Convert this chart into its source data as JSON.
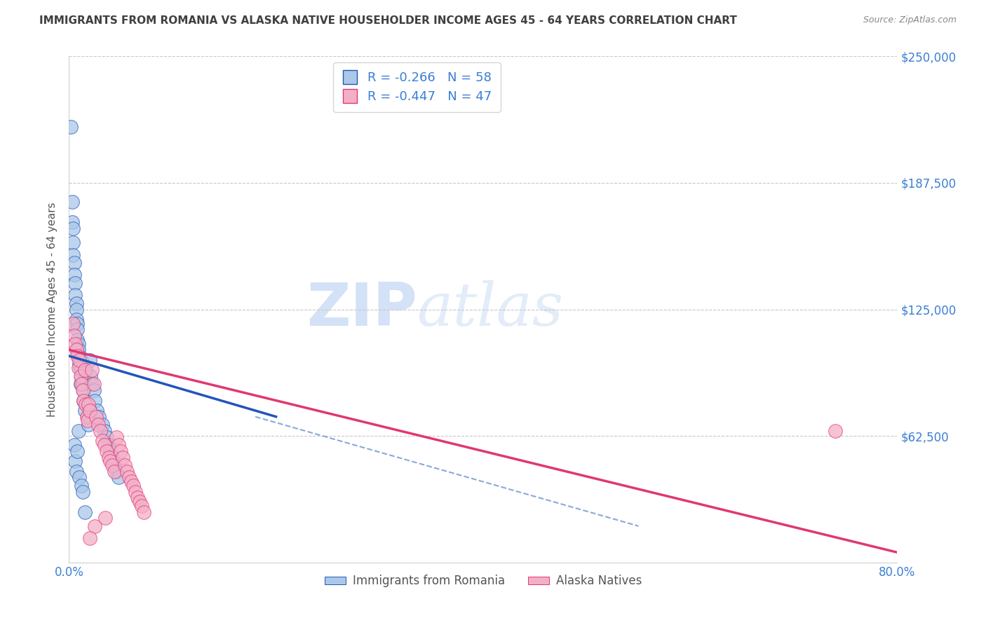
{
  "title": "IMMIGRANTS FROM ROMANIA VS ALASKA NATIVE HOUSEHOLDER INCOME AGES 45 - 64 YEARS CORRELATION CHART",
  "source": "Source: ZipAtlas.com",
  "ylabel": "Householder Income Ages 45 - 64 years",
  "xlabel": "",
  "legend_label1": "Immigrants from Romania",
  "legend_label2": "Alaska Natives",
  "r1": -0.266,
  "n1": 58,
  "r2": -0.447,
  "n2": 47,
  "color1": "#aac8e8",
  "color2": "#f4afc8",
  "line_color1": "#2255bb",
  "line_color2": "#e03870",
  "title_color": "#404040",
  "axis_color": "#3a7fd5",
  "watermark_color": "#ccddf5",
  "xlim": [
    0,
    0.8
  ],
  "ylim": [
    0,
    250000
  ],
  "yticks": [
    0,
    62500,
    125000,
    187500,
    250000
  ],
  "ytick_labels": [
    "",
    "$62,500",
    "$125,000",
    "$187,500",
    "$250,000"
  ],
  "xticks": [
    0.0,
    0.1,
    0.2,
    0.3,
    0.4,
    0.5,
    0.6,
    0.7,
    0.8
  ],
  "xtick_labels": [
    "0.0%",
    "",
    "",
    "",
    "",
    "",
    "",
    "",
    "80.0%"
  ],
  "blue_line_x": [
    0.0,
    0.2
  ],
  "blue_line_y": [
    102000,
    72000
  ],
  "pink_line_x": [
    0.0,
    0.8
  ],
  "pink_line_y": [
    105000,
    5000
  ],
  "dash_line_x": [
    0.18,
    0.55
  ],
  "dash_line_y": [
    72000,
    18000
  ],
  "scatter1_x": [
    0.002,
    0.003,
    0.003,
    0.004,
    0.004,
    0.004,
    0.005,
    0.005,
    0.005,
    0.006,
    0.006,
    0.006,
    0.007,
    0.007,
    0.007,
    0.007,
    0.008,
    0.008,
    0.008,
    0.008,
    0.009,
    0.009,
    0.009,
    0.01,
    0.01,
    0.01,
    0.011,
    0.011,
    0.012,
    0.012,
    0.012,
    0.013,
    0.013,
    0.014,
    0.014,
    0.015,
    0.016,
    0.017,
    0.018,
    0.019,
    0.02,
    0.021,
    0.022,
    0.024,
    0.025,
    0.027,
    0.029,
    0.032,
    0.034,
    0.036,
    0.038,
    0.04,
    0.042,
    0.044,
    0.046,
    0.048,
    0.02,
    0.015
  ],
  "scatter1_y": [
    215000,
    178000,
    168000,
    165000,
    158000,
    152000,
    148000,
    142000,
    58000,
    138000,
    132000,
    50000,
    128000,
    125000,
    120000,
    45000,
    118000,
    115000,
    110000,
    55000,
    108000,
    105000,
    65000,
    102000,
    98000,
    42000,
    95000,
    88000,
    100000,
    92000,
    38000,
    88000,
    35000,
    85000,
    80000,
    75000,
    95000,
    78000,
    72000,
    68000,
    100000,
    92000,
    88000,
    85000,
    80000,
    75000,
    72000,
    68000,
    65000,
    62000,
    58000,
    55000,
    52000,
    48000,
    45000,
    42000,
    75000,
    25000
  ],
  "scatter2_x": [
    0.004,
    0.005,
    0.006,
    0.007,
    0.008,
    0.009,
    0.01,
    0.011,
    0.012,
    0.013,
    0.014,
    0.015,
    0.016,
    0.017,
    0.018,
    0.019,
    0.02,
    0.022,
    0.024,
    0.026,
    0.028,
    0.03,
    0.032,
    0.034,
    0.036,
    0.038,
    0.04,
    0.042,
    0.044,
    0.046,
    0.048,
    0.05,
    0.052,
    0.054,
    0.056,
    0.058,
    0.06,
    0.062,
    0.064,
    0.066,
    0.068,
    0.07,
    0.072,
    0.74,
    0.035,
    0.025,
    0.02
  ],
  "scatter2_y": [
    118000,
    112000,
    108000,
    105000,
    102000,
    96000,
    100000,
    92000,
    88000,
    85000,
    80000,
    95000,
    78000,
    72000,
    70000,
    78000,
    75000,
    95000,
    88000,
    72000,
    68000,
    65000,
    60000,
    58000,
    55000,
    52000,
    50000,
    48000,
    45000,
    62000,
    58000,
    55000,
    52000,
    48000,
    45000,
    42000,
    40000,
    38000,
    35000,
    32000,
    30000,
    28000,
    25000,
    65000,
    22000,
    18000,
    12000
  ]
}
